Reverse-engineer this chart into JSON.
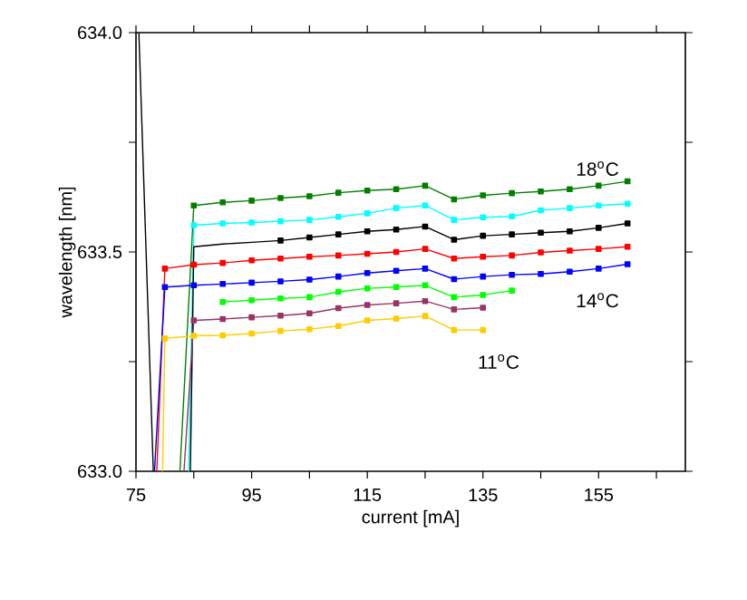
{
  "chart_data": {
    "type": "line",
    "xlabel": "current [mA]",
    "ylabel": "wavelength [nm]",
    "xlim": [
      75,
      170
    ],
    "ylim": [
      633.0,
      634.0
    ],
    "xticks": [
      75,
      {
        "value": 85,
        "label": null
      },
      95,
      {
        "value": 105,
        "label": null
      },
      115,
      {
        "value": 125,
        "label": null
      },
      135,
      {
        "value": 145,
        "label": null
      },
      155,
      {
        "value": 165,
        "label": null
      }
    ],
    "yticks": [
      {
        "value": 633.0,
        "label": "633.0"
      },
      {
        "value": 633.25,
        "label": null
      },
      {
        "value": 633.5,
        "label": "633.5"
      },
      {
        "value": 633.75,
        "label": null
      },
      {
        "value": 634.0,
        "label": "634.0"
      }
    ],
    "grid": false,
    "marker": "square",
    "line_style": "solid",
    "series": [
      {
        "color": "#008000",
        "x": [
          82.6,
          85,
          90,
          95,
          100,
          105,
          110,
          115,
          120,
          125,
          130,
          135,
          140,
          145,
          150,
          155,
          160
        ],
        "values": [
          633.0,
          633.606,
          633.613,
          633.617,
          633.623,
          633.627,
          633.635,
          633.64,
          633.643,
          633.651,
          633.62,
          633.629,
          633.634,
          633.638,
          633.643,
          633.651,
          633.661
        ]
      },
      {
        "color": "#00ffff",
        "x": [
          84.1,
          85,
          90,
          95,
          100,
          105,
          110,
          115,
          120,
          125,
          130,
          135,
          140,
          145,
          150,
          155,
          160
        ],
        "values": [
          633.0,
          633.561,
          633.565,
          633.567,
          633.57,
          633.573,
          633.58,
          633.588,
          633.6,
          633.606,
          633.573,
          633.579,
          633.581,
          633.595,
          633.6,
          633.606,
          633.61
        ]
      },
      {
        "color": "#000000",
        "x": [
          75.5,
          78,
          81,
          84.4,
          85,
          90,
          95,
          100,
          105,
          110,
          115,
          120,
          125,
          130,
          135,
          140,
          145,
          150,
          155,
          160
        ],
        "values": [
          634.0,
          633.0,
          null,
          633.0,
          633.512,
          633.518,
          633.522,
          633.526,
          633.533,
          633.54,
          633.547,
          633.551,
          633.558,
          633.528,
          633.537,
          633.54,
          633.544,
          633.547,
          633.555,
          633.565
        ]
      },
      {
        "color": "#ff0000",
        "x": [
          78.6,
          80,
          85,
          90,
          95,
          100,
          105,
          110,
          115,
          120,
          125,
          130,
          135,
          140,
          145,
          150,
          155,
          160
        ],
        "values": [
          633.0,
          633.462,
          633.471,
          633.475,
          633.481,
          633.485,
          633.489,
          633.492,
          633.496,
          633.5,
          633.507,
          633.485,
          633.489,
          633.492,
          633.499,
          633.503,
          633.507,
          633.512
        ]
      },
      {
        "color": "#0000ff",
        "x": [
          78.2,
          80,
          85,
          90,
          95,
          100,
          105,
          110,
          115,
          120,
          125,
          130,
          135,
          140,
          145,
          150,
          155,
          160
        ],
        "values": [
          633.0,
          633.42,
          633.424,
          633.427,
          633.43,
          633.433,
          633.437,
          633.444,
          633.452,
          633.457,
          633.462,
          633.438,
          633.444,
          633.448,
          633.45,
          633.455,
          633.462,
          633.472
        ]
      },
      {
        "color": "#00ff00",
        "x": [
          90,
          95,
          100,
          105,
          110,
          115,
          120,
          125,
          130,
          135,
          140
        ],
        "values": [
          633.386,
          633.39,
          633.394,
          633.397,
          633.409,
          633.417,
          633.42,
          633.424,
          633.397,
          633.402,
          633.412
        ]
      },
      {
        "color": "#993366",
        "x": [
          83.3,
          85,
          90,
          95,
          100,
          105,
          110,
          115,
          120,
          125,
          130,
          135
        ],
        "values": [
          633.0,
          633.344,
          633.347,
          633.351,
          633.355,
          633.36,
          633.372,
          633.379,
          633.383,
          633.388,
          633.369,
          633.373
        ]
      },
      {
        "color": "#ffcc00",
        "x": [
          79.6,
          80,
          85,
          90,
          95,
          100,
          105,
          110,
          115,
          120,
          125,
          130,
          135
        ],
        "values": [
          633.0,
          633.303,
          633.309,
          633.31,
          633.314,
          633.32,
          633.324,
          633.331,
          633.344,
          633.348,
          633.354,
          633.322,
          633.322
        ]
      }
    ],
    "annotations": [
      "18$^{o}$C",
      "14$^{o}$C",
      "11$^{o}$C"
    ]
  }
}
